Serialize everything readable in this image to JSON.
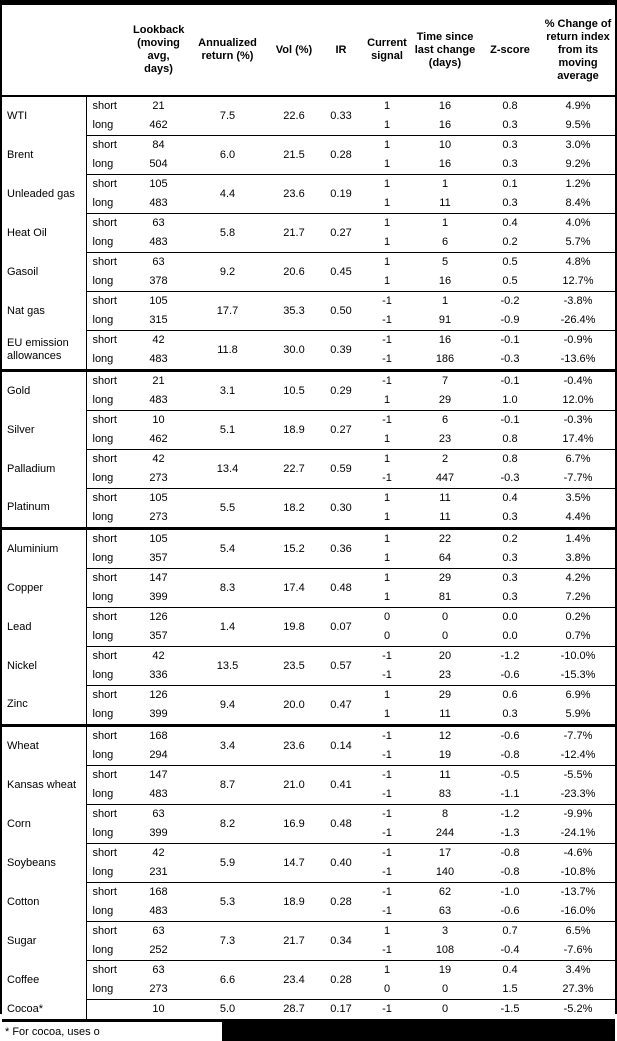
{
  "table": {
    "headers": [
      "Lookback (moving avg, days)",
      "Annualized return (%)",
      "Vol (%)",
      "IR",
      "Current signal",
      "Time since last change (days)",
      "Z-score",
      "% Change of return index from its moving average"
    ],
    "leg_labels": {
      "short": "short",
      "long": "long"
    },
    "rows": [
      {
        "name": "WTI",
        "ann": "7.5",
        "vol": "22.6",
        "ir": "0.33",
        "short": {
          "lookback": "21",
          "signal": "1",
          "time": "16",
          "z": "0.8",
          "pct": "4.9%"
        },
        "long": {
          "lookback": "462",
          "signal": "1",
          "time": "16",
          "z": "0.3",
          "pct": "9.5%"
        }
      },
      {
        "name": "Brent",
        "ann": "6.0",
        "vol": "21.5",
        "ir": "0.28",
        "short": {
          "lookback": "84",
          "signal": "1",
          "time": "10",
          "z": "0.3",
          "pct": "3.0%"
        },
        "long": {
          "lookback": "504",
          "signal": "1",
          "time": "16",
          "z": "0.3",
          "pct": "9.2%"
        }
      },
      {
        "name": "Unleaded gas",
        "ann": "4.4",
        "vol": "23.6",
        "ir": "0.19",
        "short": {
          "lookback": "105",
          "signal": "1",
          "time": "1",
          "z": "0.1",
          "pct": "1.2%"
        },
        "long": {
          "lookback": "483",
          "signal": "1",
          "time": "11",
          "z": "0.3",
          "pct": "8.4%"
        }
      },
      {
        "name": "Heat Oil",
        "ann": "5.8",
        "vol": "21.7",
        "ir": "0.27",
        "short": {
          "lookback": "63",
          "signal": "1",
          "time": "1",
          "z": "0.4",
          "pct": "4.0%"
        },
        "long": {
          "lookback": "483",
          "signal": "1",
          "time": "6",
          "z": "0.2",
          "pct": "5.7%"
        }
      },
      {
        "name": "Gasoil",
        "ann": "9.2",
        "vol": "20.6",
        "ir": "0.45",
        "short": {
          "lookback": "63",
          "signal": "1",
          "time": "5",
          "z": "0.5",
          "pct": "4.8%"
        },
        "long": {
          "lookback": "378",
          "signal": "1",
          "time": "16",
          "z": "0.5",
          "pct": "12.7%"
        }
      },
      {
        "name": "Nat gas",
        "ann": "17.7",
        "vol": "35.3",
        "ir": "0.50",
        "short": {
          "lookback": "105",
          "signal": "-1",
          "time": "1",
          "z": "-0.2",
          "pct": "-3.8%"
        },
        "long": {
          "lookback": "315",
          "signal": "-1",
          "time": "91",
          "z": "-0.9",
          "pct": "-26.4%"
        }
      },
      {
        "name": "EU emission allowances",
        "ann": "11.8",
        "vol": "30.0",
        "ir": "0.39",
        "short": {
          "lookback": "42",
          "signal": "-1",
          "time": "16",
          "z": "-0.1",
          "pct": "-0.9%"
        },
        "long": {
          "lookback": "483",
          "signal": "-1",
          "time": "186",
          "z": "-0.3",
          "pct": "-13.6%"
        }
      },
      {
        "name": "Gold",
        "section_start": true,
        "ann": "3.1",
        "vol": "10.5",
        "ir": "0.29",
        "short": {
          "lookback": "21",
          "signal": "-1",
          "time": "7",
          "z": "-0.1",
          "pct": "-0.4%"
        },
        "long": {
          "lookback": "483",
          "signal": "1",
          "time": "29",
          "z": "1.0",
          "pct": "12.0%"
        }
      },
      {
        "name": "Silver",
        "ann": "5.1",
        "vol": "18.9",
        "ir": "0.27",
        "short": {
          "lookback": "10",
          "signal": "-1",
          "time": "6",
          "z": "-0.1",
          "pct": "-0.3%"
        },
        "long": {
          "lookback": "462",
          "signal": "1",
          "time": "23",
          "z": "0.8",
          "pct": "17.4%"
        }
      },
      {
        "name": "Palladium",
        "ann": "13.4",
        "vol": "22.7",
        "ir": "0.59",
        "short": {
          "lookback": "42",
          "signal": "1",
          "time": "2",
          "z": "0.8",
          "pct": "6.7%"
        },
        "long": {
          "lookback": "273",
          "signal": "-1",
          "time": "447",
          "z": "-0.3",
          "pct": "-7.7%"
        }
      },
      {
        "name": "Platinum",
        "ann": "5.5",
        "vol": "18.2",
        "ir": "0.30",
        "short": {
          "lookback": "105",
          "signal": "1",
          "time": "11",
          "z": "0.4",
          "pct": "3.5%"
        },
        "long": {
          "lookback": "273",
          "signal": "1",
          "time": "11",
          "z": "0.3",
          "pct": "4.4%"
        }
      },
      {
        "name": "Aluminium",
        "section_start": true,
        "ann": "5.4",
        "vol": "15.2",
        "ir": "0.36",
        "short": {
          "lookback": "105",
          "signal": "1",
          "time": "22",
          "z": "0.2",
          "pct": "1.4%"
        },
        "long": {
          "lookback": "357",
          "signal": "1",
          "time": "64",
          "z": "0.3",
          "pct": "3.8%"
        }
      },
      {
        "name": "Copper",
        "ann": "8.3",
        "vol": "17.4",
        "ir": "0.48",
        "short": {
          "lookback": "147",
          "signal": "1",
          "time": "29",
          "z": "0.3",
          "pct": "4.2%"
        },
        "long": {
          "lookback": "399",
          "signal": "1",
          "time": "81",
          "z": "0.3",
          "pct": "7.2%"
        }
      },
      {
        "name": "Lead",
        "ann": "1.4",
        "vol": "19.8",
        "ir": "0.07",
        "short": {
          "lookback": "126",
          "signal": "0",
          "time": "0",
          "z": "0.0",
          "pct": "0.2%"
        },
        "long": {
          "lookback": "357",
          "signal": "0",
          "time": "0",
          "z": "0.0",
          "pct": "0.7%"
        }
      },
      {
        "name": "Nickel",
        "ann": "13.5",
        "vol": "23.5",
        "ir": "0.57",
        "short": {
          "lookback": "42",
          "signal": "-1",
          "time": "20",
          "z": "-1.2",
          "pct": "-10.0%"
        },
        "long": {
          "lookback": "336",
          "signal": "-1",
          "time": "23",
          "z": "-0.6",
          "pct": "-15.3%"
        }
      },
      {
        "name": "Zinc",
        "ann": "9.4",
        "vol": "20.0",
        "ir": "0.47",
        "short": {
          "lookback": "126",
          "signal": "1",
          "time": "29",
          "z": "0.6",
          "pct": "6.9%"
        },
        "long": {
          "lookback": "399",
          "signal": "1",
          "time": "11",
          "z": "0.3",
          "pct": "5.9%"
        }
      },
      {
        "name": "Wheat",
        "section_start": true,
        "ann": "3.4",
        "vol": "23.6",
        "ir": "0.14",
        "short": {
          "lookback": "168",
          "signal": "-1",
          "time": "12",
          "z": "-0.6",
          "pct": "-7.7%"
        },
        "long": {
          "lookback": "294",
          "signal": "-1",
          "time": "19",
          "z": "-0.8",
          "pct": "-12.4%"
        }
      },
      {
        "name": "Kansas wheat",
        "ann": "8.7",
        "vol": "21.0",
        "ir": "0.41",
        "short": {
          "lookback": "147",
          "signal": "-1",
          "time": "11",
          "z": "-0.5",
          "pct": "-5.5%"
        },
        "long": {
          "lookback": "483",
          "signal": "-1",
          "time": "83",
          "z": "-1.1",
          "pct": "-23.3%"
        }
      },
      {
        "name": "Corn",
        "ann": "8.2",
        "vol": "16.9",
        "ir": "0.48",
        "short": {
          "lookback": "63",
          "signal": "-1",
          "time": "8",
          "z": "-1.2",
          "pct": "-9.9%"
        },
        "long": {
          "lookback": "399",
          "signal": "-1",
          "time": "244",
          "z": "-1.3",
          "pct": "-24.1%"
        }
      },
      {
        "name": "Soybeans",
        "ann": "5.9",
        "vol": "14.7",
        "ir": "0.40",
        "short": {
          "lookback": "42",
          "signal": "-1",
          "time": "17",
          "z": "-0.8",
          "pct": "-4.6%"
        },
        "long": {
          "lookback": "231",
          "signal": "-1",
          "time": "140",
          "z": "-0.8",
          "pct": "-10.8%"
        }
      },
      {
        "name": "Cotton",
        "ann": "5.3",
        "vol": "18.9",
        "ir": "0.28",
        "short": {
          "lookback": "168",
          "signal": "-1",
          "time": "62",
          "z": "-1.0",
          "pct": "-13.7%"
        },
        "long": {
          "lookback": "483",
          "signal": "-1",
          "time": "63",
          "z": "-0.6",
          "pct": "-16.0%"
        }
      },
      {
        "name": "Sugar",
        "ann": "7.3",
        "vol": "21.7",
        "ir": "0.34",
        "short": {
          "lookback": "63",
          "signal": "1",
          "time": "3",
          "z": "0.7",
          "pct": "6.5%"
        },
        "long": {
          "lookback": "252",
          "signal": "-1",
          "time": "108",
          "z": "-0.4",
          "pct": "-7.6%"
        }
      },
      {
        "name": "Coffee",
        "ann": "6.6",
        "vol": "23.4",
        "ir": "0.28",
        "short": {
          "lookback": "63",
          "signal": "1",
          "time": "19",
          "z": "0.4",
          "pct": "3.4%"
        },
        "long": {
          "lookback": "273",
          "signal": "0",
          "time": "0",
          "z": "1.5",
          "pct": "27.3%"
        }
      },
      {
        "name": "Cocoa*",
        "single": true,
        "lookback": "10",
        "ann": "5.0",
        "vol": "28.7",
        "ir": "0.17",
        "signal": "-1",
        "time": "0",
        "z": "-1.5",
        "pct": "-5.2%"
      }
    ]
  },
  "footnote": "* For cocoa, uses o"
}
